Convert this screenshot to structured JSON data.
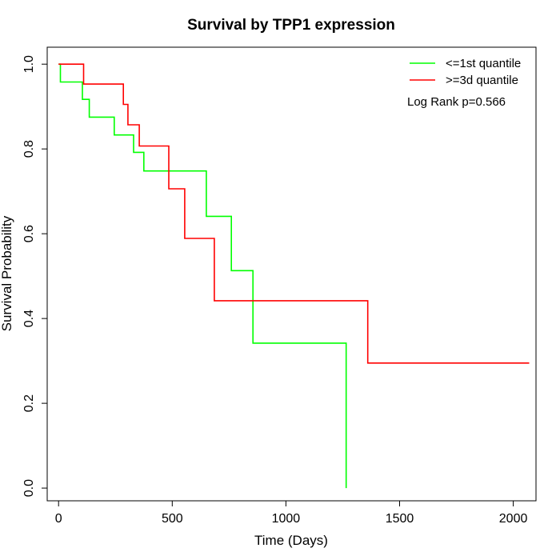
{
  "chart_data": {
    "type": "line",
    "subtype": "kaplan-meier step",
    "title": "Survival by TPP1 expression",
    "xlabel": "Time (Days)",
    "ylabel": "Survival Probability",
    "xlim": [
      -50,
      2100
    ],
    "ylim": [
      -0.03,
      1.04
    ],
    "xticks": [
      0,
      500,
      1000,
      1500,
      2000
    ],
    "yticks": [
      0.0,
      0.2,
      0.4,
      0.6,
      0.8,
      1.0
    ],
    "xtick_labels": [
      "0",
      "500",
      "1000",
      "1500",
      "2000"
    ],
    "ytick_labels": [
      "0.0",
      "0.2",
      "0.4",
      "0.6",
      "0.8",
      "1.0"
    ],
    "grid": false,
    "legend_position": "top-right",
    "annotation": "Log Rank p=0.566",
    "series": [
      {
        "name": "<=1st quantile",
        "color": "#00ff00",
        "x": [
          0,
          8,
          8,
          105,
          105,
          135,
          135,
          245,
          245,
          330,
          330,
          375,
          375,
          650,
          650,
          760,
          760,
          855,
          855,
          1265,
          1265
        ],
        "y": [
          1.0,
          1.0,
          0.958,
          0.958,
          0.917,
          0.917,
          0.875,
          0.875,
          0.833,
          0.833,
          0.792,
          0.792,
          0.748,
          0.748,
          0.641,
          0.641,
          0.513,
          0.513,
          0.342,
          0.342,
          0.0
        ]
      },
      {
        "name": ">=3d quantile",
        "color": "#ff0000",
        "x": [
          0,
          110,
          110,
          285,
          285,
          305,
          305,
          355,
          355,
          485,
          485,
          555,
          555,
          685,
          685,
          1360,
          1360,
          2070
        ],
        "y": [
          1.0,
          1.0,
          0.953,
          0.953,
          0.905,
          0.905,
          0.857,
          0.857,
          0.807,
          0.807,
          0.706,
          0.706,
          0.589,
          0.589,
          0.442,
          0.442,
          0.295,
          0.295
        ]
      }
    ]
  }
}
